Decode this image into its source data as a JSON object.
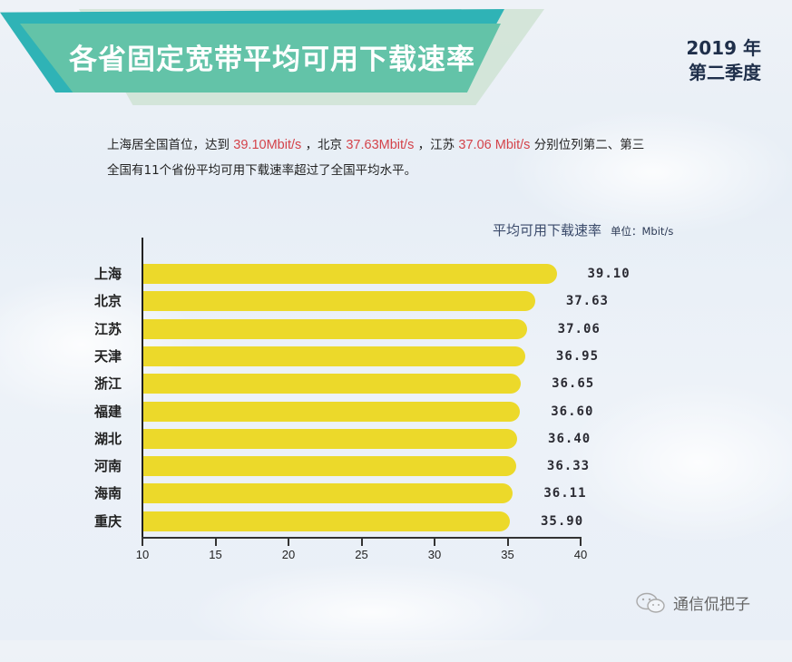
{
  "header": {
    "title": "各省固定宽带平均可用下载速率",
    "year": "2019 年",
    "quarter": "第二季度",
    "band_colors": {
      "outer": "#2fb3b6",
      "inner": "#63c3a8",
      "shadow": "#cfe3d3"
    }
  },
  "description": {
    "line1_part1": "上海居全国首位，达到",
    "line1_val1": "39.10Mbit/s",
    "line1_part2": "，北京",
    "line1_val2": "37.63Mbit/s",
    "line1_part3": "，江苏",
    "line1_val3": "37.06 Mbit/s",
    "line1_part4": "分别位列第二、第三",
    "line2": "全国有11个省份平均可用下载速率超过了全国平均水平。",
    "highlight_color": "#d4434a"
  },
  "legend": {
    "label": "平均可用下载速率",
    "unit": "单位：Mbit/s"
  },
  "watermark": {
    "icon": "wechat-icon",
    "text": "通信侃把子"
  },
  "chart_data": {
    "type": "bar",
    "orientation": "horizontal",
    "title": "各省固定宽带平均可用下载速率",
    "subtitle": "2019 年 第二季度",
    "xlabel": "",
    "ylabel": "",
    "series_name": "平均可用下载速率",
    "unit": "Mbit/s",
    "categories": [
      "上海",
      "北京",
      "江苏",
      "天津",
      "浙江",
      "福建",
      "湖北",
      "河南",
      "海南",
      "重庆"
    ],
    "values": [
      39.1,
      37.63,
      37.06,
      36.95,
      36.65,
      36.6,
      36.4,
      36.33,
      36.11,
      35.9
    ],
    "value_labels": [
      "39.10",
      "37.63",
      "37.06",
      "36.95",
      "36.65",
      "36.60",
      "36.40",
      "36.33",
      "36.11",
      "35.90"
    ],
    "xlim": [
      10,
      40
    ],
    "xticks": [
      "10",
      "15",
      "20",
      "25",
      "30",
      "35",
      "40"
    ],
    "grid": false,
    "legend_position": "top-right",
    "bar_color": "#ecd92a"
  }
}
